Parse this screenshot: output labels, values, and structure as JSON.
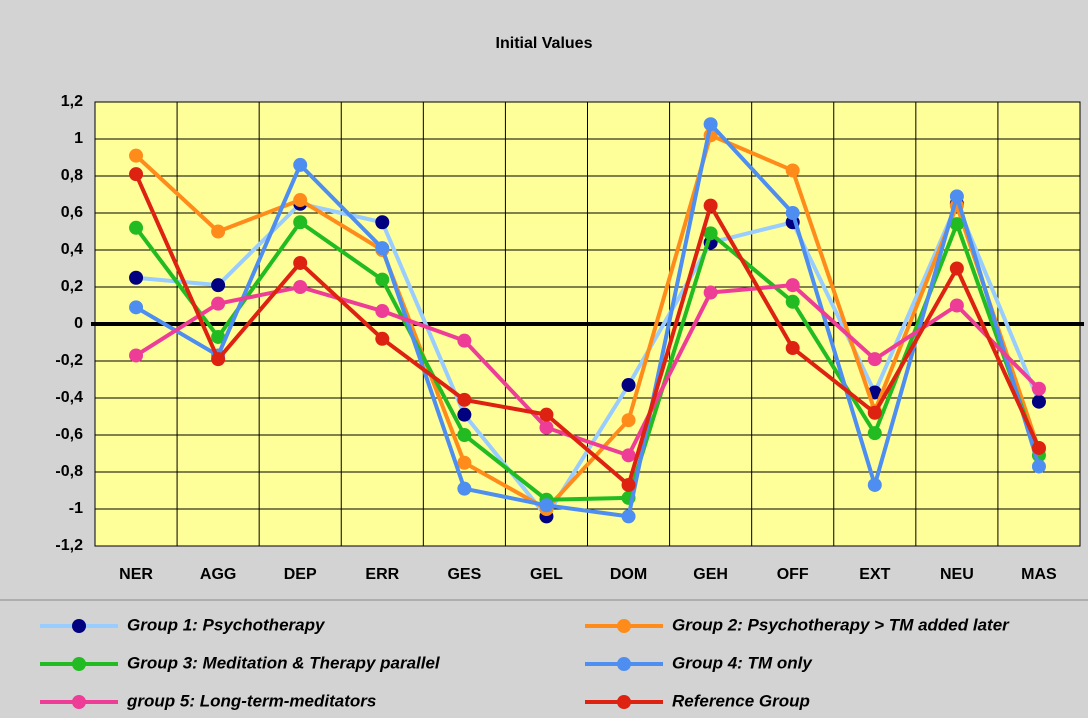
{
  "chart_data": {
    "type": "line",
    "title": "Initial Values",
    "categories": [
      "NER",
      "AGG",
      "DEP",
      "ERR",
      "GES",
      "GEL",
      "DOM",
      "GEH",
      "OFF",
      "EXT",
      "NEU",
      "MAS"
    ],
    "ylim": [
      -1.2,
      1.2
    ],
    "yticks": [
      {
        "value": -1.2,
        "label": "-1,2"
      },
      -1,
      {
        "value": -0.8,
        "label": "-0,8"
      },
      {
        "value": -0.6,
        "label": "-0,6"
      },
      {
        "value": -0.4,
        "label": "-0,4"
      },
      {
        "value": -0.2,
        "label": "-0,2"
      },
      0,
      {
        "value": 0.2,
        "label": "0,2"
      },
      {
        "value": 0.4,
        "label": "0,4"
      },
      {
        "value": 0.6,
        "label": "0,6"
      },
      {
        "value": 0.8,
        "label": "0,8"
      },
      1,
      {
        "value": 1.2,
        "label": "1,2"
      }
    ],
    "grid": true,
    "series": [
      {
        "name": "Group 1: Psychotherapy",
        "color": "#99ccff",
        "marker_color": "#000080",
        "values": [
          0.25,
          0.21,
          0.65,
          0.55,
          -0.49,
          -1.04,
          -0.33,
          0.44,
          0.55,
          -0.37,
          0.65,
          -0.42
        ]
      },
      {
        "name": "Group 2: Psychotherapy > TM added later",
        "color": "#ff8c1a",
        "marker_color": "#ff8c1a",
        "values": [
          0.91,
          0.5,
          0.67,
          0.4,
          -0.75,
          -1.0,
          -0.52,
          1.02,
          0.83,
          -0.47,
          0.64,
          -0.68
        ]
      },
      {
        "name": "Group 3: Meditation & Therapy parallel",
        "color": "#22bb22",
        "marker_color": "#22bb22",
        "values": [
          0.52,
          -0.07,
          0.55,
          0.24,
          -0.6,
          -0.95,
          -0.94,
          0.49,
          0.12,
          -0.59,
          0.54,
          -0.71
        ]
      },
      {
        "name": "Group 4: TM only",
        "color": "#4d8ef0",
        "marker_color": "#4d8ef0",
        "values": [
          0.09,
          -0.17,
          0.86,
          0.41,
          -0.89,
          -0.98,
          -1.04,
          1.08,
          0.6,
          -0.87,
          0.69,
          -0.77
        ]
      },
      {
        "name": "group 5: Long-term-meditators",
        "color": "#ee3d96",
        "marker_color": "#ee3d96",
        "values": [
          -0.17,
          0.11,
          0.2,
          0.07,
          -0.09,
          -0.56,
          -0.71,
          0.17,
          0.21,
          -0.19,
          0.1,
          -0.35
        ]
      },
      {
        "name": "Reference Group",
        "color": "#dd2211",
        "marker_color": "#dd2211",
        "values": [
          0.81,
          -0.19,
          0.33,
          -0.08,
          -0.41,
          -0.49,
          -0.87,
          0.64,
          -0.13,
          -0.48,
          0.3,
          -0.67
        ]
      }
    ]
  }
}
